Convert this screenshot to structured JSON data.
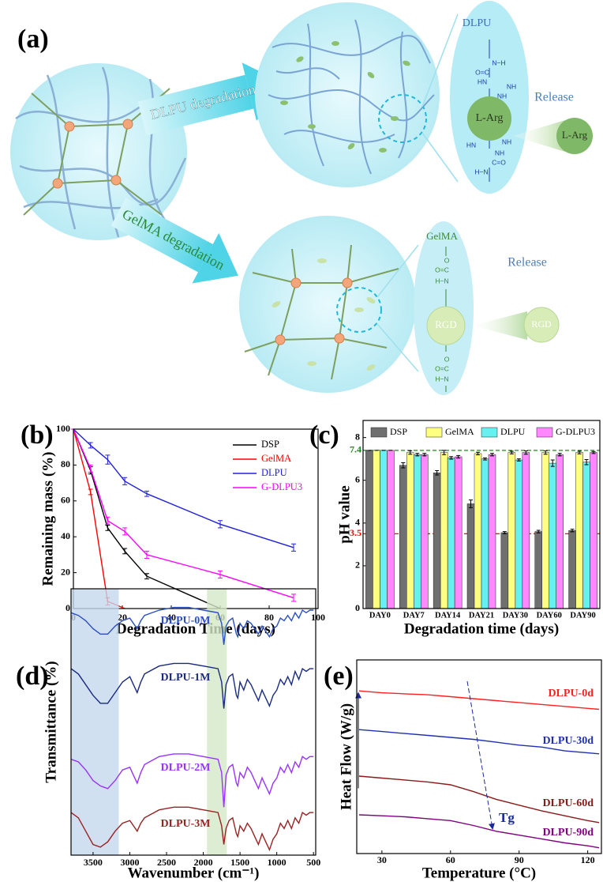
{
  "diagram": {
    "panel": "(a)",
    "arrows": [
      "DLPU degradation",
      "GelMA degradation"
    ],
    "dlpu": {
      "title": "DLPU",
      "core": "L-Arg",
      "groups": [
        "N−H",
        "O=C",
        "HN",
        "NH",
        "NH",
        "HN",
        "NH",
        "NH",
        "C=O",
        "H−N"
      ],
      "release": "Release",
      "product": "L-Arg"
    },
    "gelma": {
      "title": "GelMA",
      "core": "RGD",
      "groups": [
        "O",
        "O=C",
        "H−N",
        "O",
        "O=C",
        "H−N"
      ],
      "release": "Release",
      "product": "RGD"
    }
  },
  "chart_data": [
    {
      "type": "line",
      "panel": "(b)",
      "xlabel": "Degradation Time (days)",
      "ylabel": "Remaining mass (%)",
      "xlim": [
        0,
        100
      ],
      "xticks": [
        0,
        20,
        40,
        60,
        80,
        100
      ],
      "ylim": [
        0,
        100
      ],
      "yticks": [
        0,
        20,
        40,
        60,
        80,
        100
      ],
      "legend": "top-right",
      "series": [
        {
          "name": "DSP",
          "color": "#000000",
          "x": [
            0,
            7,
            14,
            21,
            30,
            60
          ],
          "values": [
            100,
            77,
            45,
            32,
            18,
            0
          ],
          "errors": [
            0,
            2,
            1.5,
            1.5,
            1.5,
            0
          ]
        },
        {
          "name": "GelMA",
          "color": "#ff0000",
          "x": [
            0,
            7,
            14,
            21
          ],
          "values": [
            100,
            65,
            4,
            0
          ],
          "errors": [
            0,
            1.5,
            2,
            0
          ]
        },
        {
          "name": "DLPU",
          "color": "#2020e0",
          "x": [
            0,
            7,
            14,
            21,
            30,
            60,
            90
          ],
          "values": [
            100,
            91,
            83,
            71,
            64,
            47,
            34
          ],
          "errors": [
            0,
            1.5,
            2.5,
            2,
            1.5,
            2,
            2
          ]
        },
        {
          "name": "G-DLPU3",
          "color": "#ff00ff",
          "x": [
            0,
            7,
            14,
            21,
            30,
            60,
            90
          ],
          "values": [
            100,
            78,
            49,
            43,
            30,
            19,
            6
          ],
          "errors": [
            0,
            2,
            2,
            2,
            2,
            2,
            2
          ]
        }
      ]
    },
    {
      "type": "bar",
      "panel": "(c)",
      "xlabel": "Degradation time (days)",
      "ylabel": "pH value",
      "categories": [
        "DAY0",
        "DAY7",
        "DAY14",
        "DAY21",
        "DAY30",
        "DAY60",
        "DAY90"
      ],
      "ylim": [
        0,
        8.8
      ],
      "yticks": [
        0,
        2,
        4,
        6,
        8
      ],
      "legend": "top",
      "reference_lines": [
        {
          "value": 7.4,
          "color": "#1a8a1a"
        },
        {
          "value": 3.5,
          "color": "#ff0000"
        }
      ],
      "series": [
        {
          "name": "DSP",
          "color": "#707070",
          "values": [
            7.4,
            6.7,
            6.35,
            4.9,
            3.55,
            3.6,
            3.65
          ],
          "errors": [
            0,
            0.12,
            0.1,
            0.18,
            0.05,
            0.06,
            0.06
          ]
        },
        {
          "name": "GelMA",
          "color": "#ffff80",
          "values": [
            7.4,
            7.3,
            7.3,
            7.25,
            7.3,
            7.3,
            7.3
          ],
          "errors": [
            0,
            0.08,
            0.1,
            0.06,
            0.06,
            0.08,
            0.06
          ]
        },
        {
          "name": "DLPU",
          "color": "#66f0f0",
          "values": [
            7.4,
            7.2,
            7.05,
            7.0,
            6.95,
            6.8,
            6.85
          ],
          "errors": [
            0,
            0.06,
            0.06,
            0.05,
            0.05,
            0.15,
            0.12
          ]
        },
        {
          "name": "G-DLPU3",
          "color": "#ff88ff",
          "values": [
            7.4,
            7.2,
            7.1,
            7.2,
            7.3,
            7.2,
            7.3
          ],
          "errors": [
            0,
            0.06,
            0.06,
            0.06,
            0.08,
            0.06,
            0.05
          ]
        }
      ]
    },
    {
      "type": "line",
      "panel": "(d)",
      "xlabel": "Wavenumber (cm⁻¹)",
      "ylabel": "Transmittance (%)",
      "x": [
        3800,
        3700,
        3600,
        3500,
        3400,
        3300,
        3200,
        3100,
        3000,
        2950,
        2900,
        2850,
        2800,
        2600,
        2400,
        2200,
        2000,
        1800,
        1750,
        1720,
        1690,
        1650,
        1600,
        1550,
        1530,
        1500,
        1450,
        1400,
        1350,
        1300,
        1250,
        1200,
        1150,
        1100,
        1050,
        1000,
        950,
        900,
        850,
        800,
        750,
        700,
        650,
        600,
        550,
        500
      ],
      "xlim": [
        3800,
        470
      ],
      "xticks": [
        3500,
        3000,
        2500,
        2000,
        1500,
        1000,
        500
      ],
      "ylim": [
        0,
        100
      ],
      "legend": "inline",
      "highlights": [
        {
          "range": [
            3800,
            3150
          ],
          "color": "#c5d8ee"
        },
        {
          "range": [
            1950,
            1680
          ],
          "color": "#d5e8c8"
        }
      ],
      "series": [
        {
          "name": "DLPU-0M",
          "color": "#2b4fc0",
          "values": [
            91,
            90,
            88,
            85,
            83,
            83,
            86,
            88,
            89,
            87,
            85,
            88,
            90,
            92,
            93,
            93,
            92,
            91,
            87,
            79,
            86,
            88,
            89,
            83,
            82,
            87,
            85,
            88,
            87,
            85,
            83,
            86,
            84,
            82,
            85,
            86,
            89,
            88,
            90,
            88,
            91,
            89,
            92,
            91,
            92,
            92
          ]
        },
        {
          "name": "DLPU-1M",
          "color": "#1a2a80",
          "values": [
            70,
            68,
            64,
            60,
            57,
            57,
            61,
            65,
            67,
            64,
            61,
            65,
            68,
            71,
            72,
            72,
            71,
            70,
            65,
            55,
            64,
            67,
            68,
            60,
            59,
            65,
            62,
            66,
            64,
            61,
            58,
            62,
            59,
            56,
            60,
            62,
            66,
            64,
            67,
            64,
            69,
            66,
            70,
            69,
            70,
            70
          ]
        },
        {
          "name": "DLPU-2M",
          "color": "#9933ff",
          "values": [
            36,
            35,
            32,
            28,
            26,
            25,
            28,
            32,
            33,
            30,
            27,
            31,
            34,
            37,
            38,
            38,
            37,
            36,
            31,
            18,
            30,
            33,
            34,
            27,
            26,
            31,
            29,
            33,
            31,
            28,
            25,
            29,
            26,
            23,
            27,
            29,
            33,
            31,
            34,
            31,
            35,
            33,
            37,
            36,
            37,
            37
          ]
        },
        {
          "name": "DLPU-3M",
          "color": "#992222",
          "values": [
            16,
            14,
            9,
            4,
            3,
            5,
            9,
            12,
            13,
            11,
            9,
            12,
            14,
            17,
            18,
            18,
            17,
            16,
            11,
            4,
            10,
            13,
            14,
            8,
            7,
            11,
            9,
            12,
            10,
            7,
            4,
            8,
            5,
            2,
            6,
            8,
            12,
            10,
            13,
            10,
            14,
            12,
            16,
            15,
            16,
            16
          ]
        }
      ]
    },
    {
      "type": "line",
      "panel": "(e)",
      "xlabel": "Temperature (°C)",
      "ylabel": "Heat Flow (W/g)",
      "x": [
        20,
        30,
        40,
        50,
        60,
        70,
        80,
        90,
        100,
        110,
        120,
        125
      ],
      "xlim": [
        19,
        126
      ],
      "xticks": [
        30,
        60,
        90,
        120
      ],
      "ylim": [
        0,
        100
      ],
      "legend": "inline",
      "annotation": "Tg",
      "series": [
        {
          "name": "DLPU-0d",
          "color": "#ff2020",
          "values": [
            84,
            83,
            82.5,
            82,
            81,
            80,
            79,
            78,
            77,
            76,
            75,
            74.5
          ]
        },
        {
          "name": "DLPU-30d",
          "color": "#2030b0",
          "values": [
            64,
            63,
            62,
            61,
            60,
            59,
            57.5,
            56,
            55,
            53,
            52,
            51.5
          ]
        },
        {
          "name": "DLPU-60d",
          "color": "#8b1a1a",
          "values": [
            40,
            39,
            38,
            37,
            35.5,
            32,
            28,
            25,
            22,
            19.5,
            17,
            16
          ]
        },
        {
          "name": "DLPU-90d",
          "color": "#800080",
          "values": [
            20,
            19.5,
            19,
            18,
            17,
            14.5,
            11.5,
            9.5,
            7.5,
            5.5,
            4,
            3
          ]
        }
      ]
    }
  ]
}
